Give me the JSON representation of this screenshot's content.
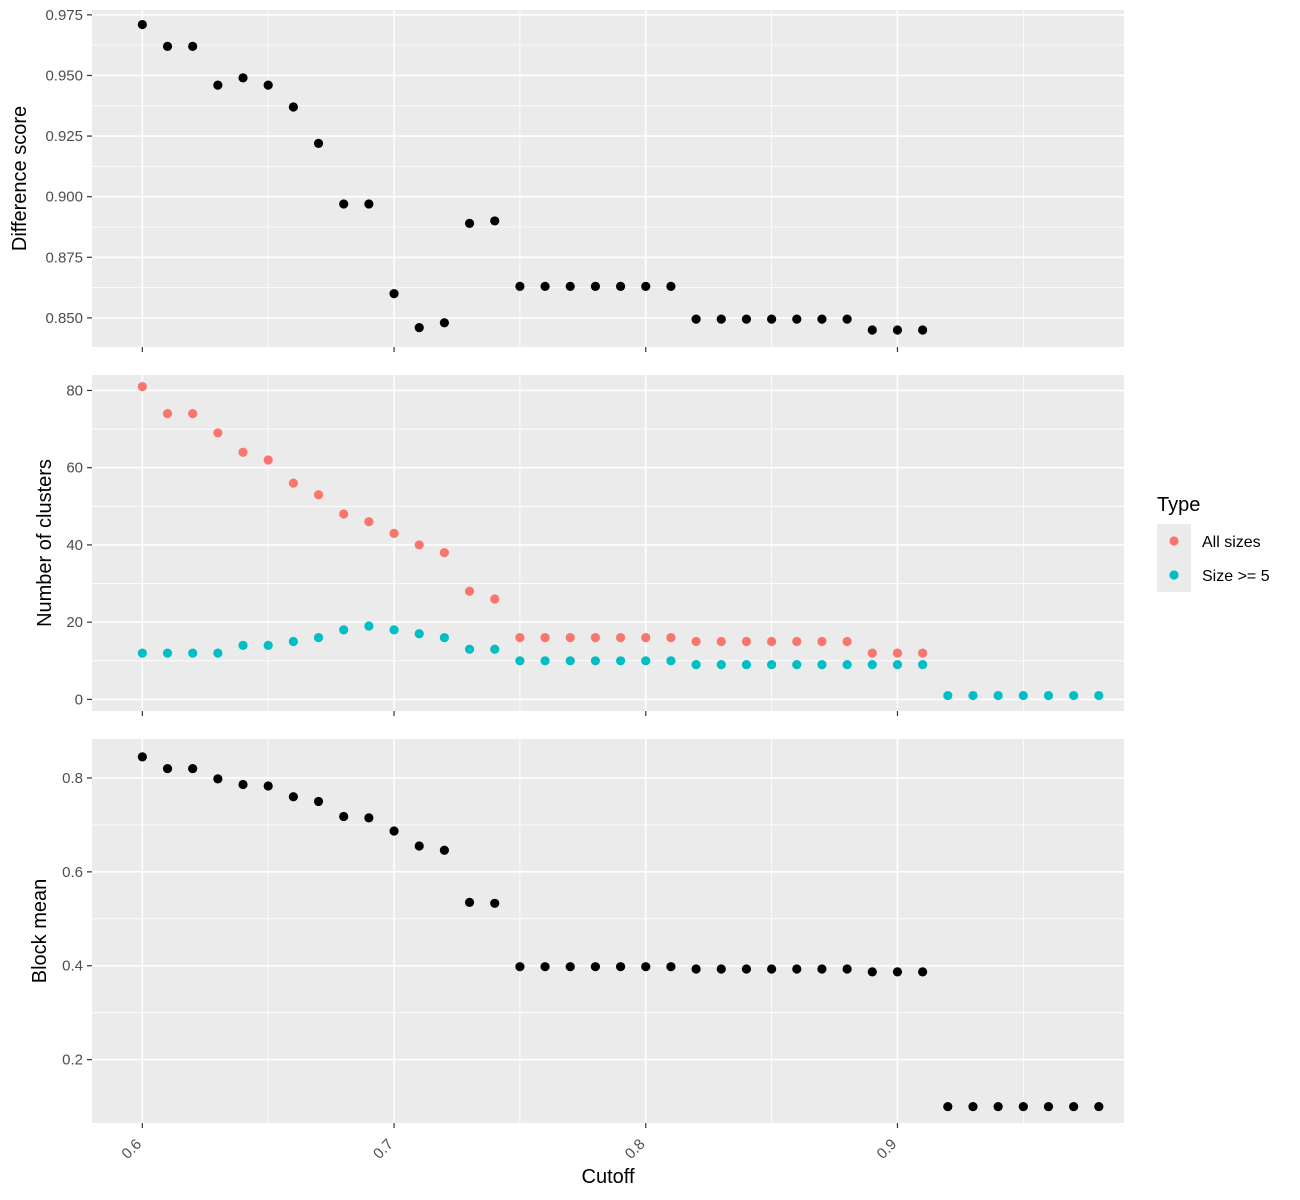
{
  "chart_data": [
    {
      "type": "scatter",
      "title": "",
      "xlabel": "",
      "ylabel": "Difference score",
      "xlim": [
        0.58,
        0.99
      ],
      "ylim": [
        0.838,
        0.977
      ],
      "y_ticks": [
        0.85,
        0.875,
        0.9,
        0.925,
        0.95,
        0.975
      ],
      "y_tick_labels": [
        "0.850",
        "0.875",
        "0.900",
        "0.925",
        "0.950",
        "0.975"
      ],
      "grid": true,
      "series": [
        {
          "color": "#000000",
          "x": [
            0.6,
            0.61,
            0.62,
            0.63,
            0.64,
            0.65,
            0.66,
            0.67,
            0.68,
            0.69,
            0.7,
            0.71,
            0.72,
            0.73,
            0.74,
            0.75,
            0.76,
            0.77,
            0.78,
            0.79,
            0.8,
            0.81,
            0.82,
            0.83,
            0.84,
            0.85,
            0.86,
            0.87,
            0.88,
            0.89,
            0.9,
            0.91
          ],
          "y": [
            0.971,
            0.962,
            0.962,
            0.946,
            0.949,
            0.946,
            0.937,
            0.922,
            0.897,
            0.897,
            0.86,
            0.846,
            0.848,
            0.889,
            0.89,
            0.863,
            0.863,
            0.863,
            0.863,
            0.863,
            0.863,
            0.863,
            0.8495,
            0.8495,
            0.8495,
            0.8495,
            0.8495,
            0.8495,
            0.8495,
            0.845,
            0.845,
            0.845
          ]
        }
      ]
    },
    {
      "type": "scatter",
      "title": "",
      "xlabel": "",
      "ylabel": "Number of clusters",
      "xlim": [
        0.58,
        0.99
      ],
      "ylim": [
        -3,
        84
      ],
      "y_ticks": [
        0,
        20,
        40,
        60,
        80
      ],
      "y_tick_labels": [
        "0",
        "20",
        "40",
        "60",
        "80"
      ],
      "grid": true,
      "legend": {
        "title": "Type",
        "placement": "right",
        "entries": [
          "All sizes",
          "Size >= 5"
        ]
      },
      "series": [
        {
          "name": "All sizes",
          "color": "#F8766D",
          "x": [
            0.6,
            0.61,
            0.62,
            0.63,
            0.64,
            0.65,
            0.66,
            0.67,
            0.68,
            0.69,
            0.7,
            0.71,
            0.72,
            0.73,
            0.74,
            0.75,
            0.76,
            0.77,
            0.78,
            0.79,
            0.8,
            0.81,
            0.82,
            0.83,
            0.84,
            0.85,
            0.86,
            0.87,
            0.88,
            0.89,
            0.9,
            0.91
          ],
          "y": [
            81,
            74,
            74,
            69,
            64,
            62,
            56,
            53,
            48,
            46,
            43,
            40,
            38,
            28,
            26,
            16,
            16,
            16,
            16,
            16,
            16,
            16,
            15,
            15,
            15,
            15,
            15,
            15,
            15,
            12,
            12,
            12
          ]
        },
        {
          "name": "Size >= 5",
          "color": "#00BFC4",
          "x": [
            0.6,
            0.61,
            0.62,
            0.63,
            0.64,
            0.65,
            0.66,
            0.67,
            0.68,
            0.69,
            0.7,
            0.71,
            0.72,
            0.73,
            0.74,
            0.75,
            0.76,
            0.77,
            0.78,
            0.79,
            0.8,
            0.81,
            0.82,
            0.83,
            0.84,
            0.85,
            0.86,
            0.87,
            0.88,
            0.89,
            0.9,
            0.91,
            0.92,
            0.93,
            0.94,
            0.95,
            0.96,
            0.97,
            0.98
          ],
          "y": [
            12,
            12,
            12,
            12,
            14,
            14,
            15,
            16,
            18,
            19,
            18,
            17,
            16,
            13,
            13,
            10,
            10,
            10,
            10,
            10,
            10,
            10,
            9,
            9,
            9,
            9,
            9,
            9,
            9,
            9,
            9,
            9,
            1,
            1,
            1,
            1,
            1,
            1,
            1
          ]
        }
      ]
    },
    {
      "type": "scatter",
      "title": "",
      "xlabel": "Cutoff",
      "ylabel": "Block mean",
      "xlim": [
        0.58,
        0.99
      ],
      "ylim": [
        0.065,
        0.883
      ],
      "x_ticks": [
        0.6,
        0.7,
        0.8,
        0.9
      ],
      "x_tick_labels": [
        "0.6",
        "0.7",
        "0.8",
        "0.9"
      ],
      "y_ticks": [
        0.2,
        0.4,
        0.6,
        0.8
      ],
      "y_tick_labels": [
        "0.2",
        "0.4",
        "0.6",
        "0.8"
      ],
      "grid": true,
      "series": [
        {
          "color": "#000000",
          "x": [
            0.6,
            0.61,
            0.62,
            0.63,
            0.64,
            0.65,
            0.66,
            0.67,
            0.68,
            0.69,
            0.7,
            0.71,
            0.72,
            0.73,
            0.74,
            0.75,
            0.76,
            0.77,
            0.78,
            0.79,
            0.8,
            0.81,
            0.82,
            0.83,
            0.84,
            0.85,
            0.86,
            0.87,
            0.88,
            0.89,
            0.9,
            0.91,
            0.92,
            0.93,
            0.94,
            0.95,
            0.96,
            0.97,
            0.98
          ],
          "y": [
            0.845,
            0.82,
            0.82,
            0.798,
            0.786,
            0.783,
            0.76,
            0.75,
            0.718,
            0.715,
            0.687,
            0.655,
            0.646,
            0.535,
            0.533,
            0.398,
            0.398,
            0.398,
            0.398,
            0.398,
            0.398,
            0.398,
            0.393,
            0.393,
            0.393,
            0.393,
            0.393,
            0.393,
            0.393,
            0.387,
            0.387,
            0.387,
            0.1,
            0.1,
            0.1,
            0.1,
            0.1,
            0.1,
            0.1
          ]
        }
      ]
    }
  ]
}
